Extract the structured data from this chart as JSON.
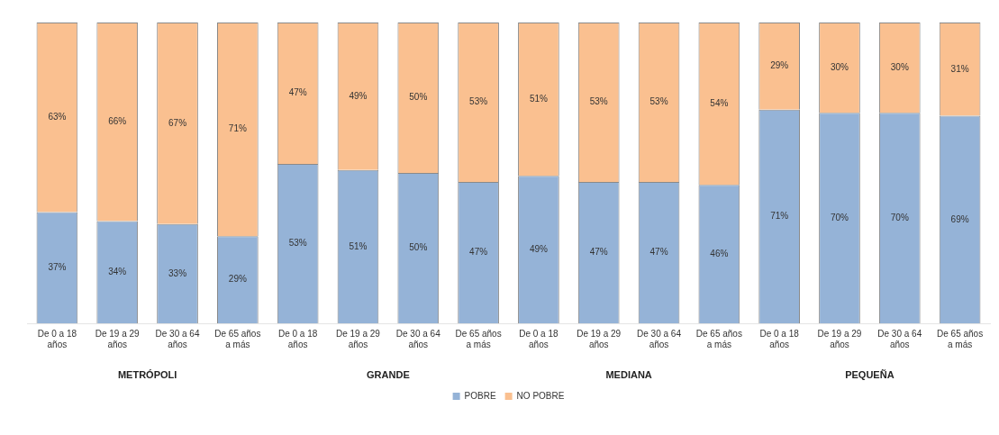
{
  "chart_data": {
    "type": "bar",
    "stacked": true,
    "categories": [
      "De 0 a 18 años",
      "De 19 a 29 años",
      "De 30 a 64 años",
      "De 65 años a más",
      "De 0 a 18 años",
      "De 19 a 29 años",
      "De 30 a 64 años",
      "De 65 años a más",
      "De 0 a 18 años",
      "De 19 a 29 años",
      "De 30 a 64 años",
      "De 65 años a más",
      "De 0 a 18 años",
      "De 19 a 29 años",
      "De 30 a 64 años",
      "De 65 años a más"
    ],
    "series": [
      {
        "name": "POBRE",
        "color": "#95b3d7",
        "values": [
          37,
          34,
          33,
          29,
          53,
          51,
          50,
          47,
          49,
          47,
          47,
          46,
          71,
          70,
          70,
          69
        ],
        "value_labels": [
          "37%",
          "34%",
          "33%",
          "29%",
          "53%",
          "51%",
          "50%",
          "47%",
          "49%",
          "47%",
          "47%",
          "46%",
          "71%",
          "70%",
          "70%",
          "69%"
        ]
      },
      {
        "name": "NO POBRE",
        "color": "#fac090",
        "values": [
          63,
          66,
          67,
          71,
          47,
          49,
          50,
          53,
          51,
          53,
          53,
          54,
          29,
          30,
          30,
          31
        ],
        "value_labels": [
          "63%",
          "66%",
          "67%",
          "71%",
          "47%",
          "49%",
          "50%",
          "53%",
          "51%",
          "53%",
          "53%",
          "54%",
          "29%",
          "30%",
          "30%",
          "31%"
        ]
      }
    ],
    "tick_labels": "x",
    "grid": false,
    "legend": "bottom",
    "annotations": [
      "METRÓPOLI",
      "GRANDE",
      "MEDIANA",
      "PEQUEÑA"
    ]
  }
}
